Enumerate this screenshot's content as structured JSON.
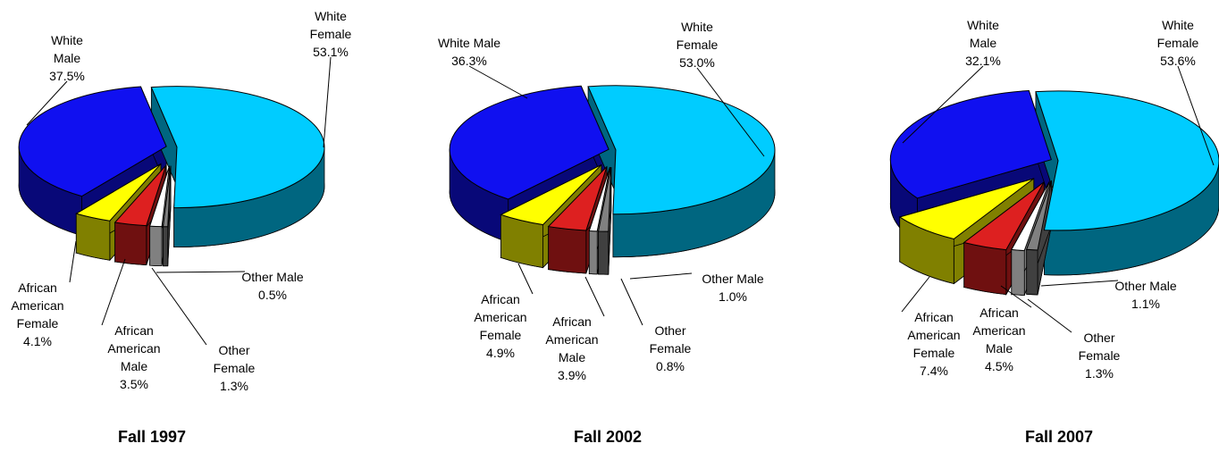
{
  "chart_data": [
    {
      "type": "pie",
      "title": "Fall 1997",
      "categories": [
        "White Female",
        "Other Male",
        "Other Female",
        "African American Male",
        "African American Female",
        "White Male"
      ],
      "values": [
        53.1,
        0.5,
        1.3,
        3.5,
        4.1,
        37.5
      ],
      "value_labels": [
        "53.1%",
        "0.5%",
        "1.3%",
        "3.5%",
        "4.1%",
        "37.5%"
      ],
      "colors": [
        "#00ccff",
        "#808080",
        "#ffffff",
        "#dd2020",
        "#ffff00",
        "#1010f0"
      ]
    },
    {
      "type": "pie",
      "title": "Fall 2002",
      "categories": [
        "White Female",
        "Other Male",
        "Other Female",
        "African American Male",
        "African American Female",
        "White Male"
      ],
      "values": [
        53.0,
        1.0,
        0.8,
        3.9,
        4.9,
        36.3
      ],
      "value_labels": [
        "53.0%",
        "1.0%",
        "0.8%",
        "3.9%",
        "4.9%",
        "36.3%"
      ],
      "colors": [
        "#00ccff",
        "#808080",
        "#ffffff",
        "#dd2020",
        "#ffff00",
        "#1010f0"
      ]
    },
    {
      "type": "pie",
      "title": "Fall 2007",
      "categories": [
        "White Female",
        "Other Male",
        "Other Female",
        "African American Male",
        "African American Female",
        "White Male"
      ],
      "values": [
        53.6,
        1.1,
        1.3,
        4.5,
        7.4,
        32.1
      ],
      "value_labels": [
        "53.6%",
        "1.1%",
        "1.3%",
        "4.5%",
        "7.4%",
        "32.1%"
      ],
      "colors": [
        "#00ccff",
        "#808080",
        "#ffffff",
        "#dd2020",
        "#ffff00",
        "#1010f0"
      ]
    }
  ]
}
